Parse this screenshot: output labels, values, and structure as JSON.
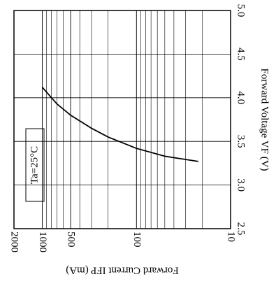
{
  "chart_data": {
    "type": "line",
    "x_label": "Forward Current  IFP (mA)",
    "y_label": "Forward Voltage  VF (V)",
    "annotation": "Ta=25°C",
    "x_log": true,
    "xlim": [
      2000,
      10
    ],
    "xticks": [
      2000,
      1000,
      500,
      100,
      10
    ],
    "ylim": [
      2.5,
      5.0
    ],
    "yticks": [
      {
        "value": 2.5,
        "label": "2.5"
      },
      {
        "value": 3.0,
        "label": "3.0"
      },
      {
        "value": 3.5,
        "label": "3.5"
      },
      {
        "value": 4.0,
        "label": "4.0"
      },
      {
        "value": 4.5,
        "label": "4.5"
      },
      {
        "value": 5.0,
        "label": "5.0"
      }
    ],
    "grid": true,
    "series": [
      {
        "color": "#000000",
        "x": [
          1000,
          700,
          500,
          300,
          200,
          100,
          50,
          22
        ],
        "values": [
          4.12,
          3.93,
          3.8,
          3.65,
          3.55,
          3.42,
          3.33,
          3.27
        ]
      }
    ]
  }
}
